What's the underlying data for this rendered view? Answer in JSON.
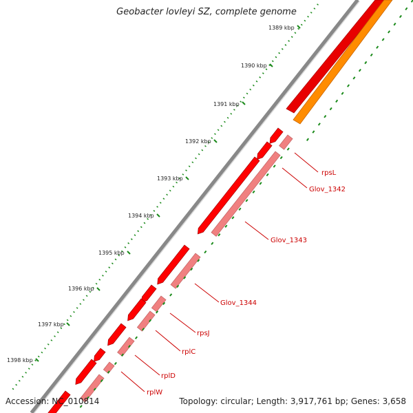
{
  "title": "Geobacter lovleyi SZ, complete genome",
  "footer": {
    "accession": "Accession: NC_010814",
    "summary": "Topology: circular; Length: 3,917,761 bp; Genes: 3,658"
  },
  "ticks": [
    "1389 kbp",
    "1390 kbp",
    "1391 kbp",
    "1392 kbp",
    "1393 kbp",
    "1394 kbp",
    "1395 kbp",
    "1396 kbp",
    "1397 kbp",
    "1398 kbp"
  ],
  "genes": [
    "rpsL",
    "Glov_1342",
    "Glov_1343",
    "Glov_1344",
    "rpsJ",
    "rplC",
    "rplD",
    "rplW"
  ],
  "colors": {
    "backbone": "#888888",
    "forward": "#ff0000",
    "reverse": "#f08080",
    "rrna": "#ff8c00",
    "tick": "#1a8a1a",
    "label": "#cc0000"
  }
}
